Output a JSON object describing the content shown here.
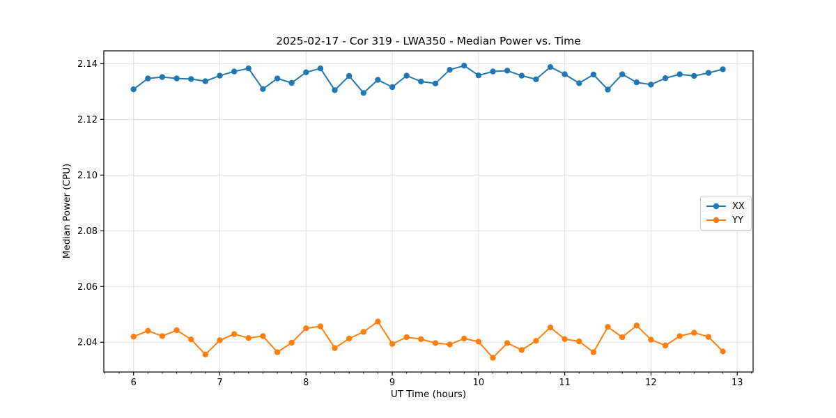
{
  "chart_data": {
    "type": "line",
    "title": "2025-02-17 - Cor 319 - LWA350 - Median Power vs. Time",
    "xlabel": "UT Time (hours)",
    "ylabel": "Median Power (CPU)",
    "xlim": [
      5.655,
      13.184
    ],
    "ylim": [
      2.0293,
      2.1446
    ],
    "grid": true,
    "legend_position": "center right",
    "x_ticks": [
      6,
      7,
      8,
      9,
      10,
      11,
      12,
      13
    ],
    "x_tick_labels": [
      "6",
      "7",
      "8",
      "9",
      "10",
      "11",
      "12",
      "13"
    ],
    "minor_x_tick_interval": 0.16667,
    "y_ticks": [
      2.04,
      2.06,
      2.08,
      2.1,
      2.12,
      2.14
    ],
    "y_tick_labels": [
      "2.04",
      "2.06",
      "2.08",
      "2.10",
      "2.12",
      "2.14"
    ],
    "colors": {
      "xx": "#1f77b4",
      "yy": "#ff7f0e",
      "grid": "#e0e0e0",
      "axis": "#000000",
      "background": "#ffffff"
    },
    "x": [
      6.0,
      6.167,
      6.333,
      6.5,
      6.667,
      6.833,
      7.0,
      7.167,
      7.333,
      7.5,
      7.667,
      7.833,
      8.0,
      8.167,
      8.333,
      8.5,
      8.667,
      8.833,
      9.0,
      9.167,
      9.333,
      9.5,
      9.667,
      9.833,
      10.0,
      10.167,
      10.333,
      10.5,
      10.667,
      10.833,
      11.0,
      11.167,
      11.333,
      11.5,
      11.667,
      11.833,
      12.0,
      12.167,
      12.333,
      12.5,
      12.667,
      12.833
    ],
    "series": [
      {
        "name": "XX",
        "color_key": "xx",
        "values": [
          2.1308,
          2.1347,
          2.1352,
          2.1347,
          2.1345,
          2.1337,
          2.1357,
          2.1372,
          2.1383,
          2.1309,
          2.1347,
          2.1331,
          2.1369,
          2.1383,
          2.1305,
          2.1356,
          2.1295,
          2.1342,
          2.1316,
          2.1357,
          2.1336,
          2.1329,
          2.1378,
          2.1393,
          2.1358,
          2.1372,
          2.1375,
          2.1357,
          2.1344,
          2.1388,
          2.1362,
          2.133,
          2.1361,
          2.1307,
          2.1362,
          2.1333,
          2.1325,
          2.1348,
          2.1362,
          2.1356,
          2.1367,
          2.138
        ]
      },
      {
        "name": "YY",
        "color_key": "yy",
        "values": [
          2.042,
          2.0441,
          2.0422,
          2.0443,
          2.041,
          2.0356,
          2.0407,
          2.0429,
          2.0415,
          2.0422,
          2.0364,
          2.0398,
          2.045,
          2.0457,
          2.0379,
          2.0413,
          2.0437,
          2.0474,
          2.0394,
          2.0418,
          2.0411,
          2.0397,
          2.0392,
          2.0413,
          2.0402,
          2.0344,
          2.0397,
          2.0372,
          2.0405,
          2.0453,
          2.0411,
          2.0403,
          2.0364,
          2.0455,
          2.0418,
          2.046,
          2.0409,
          2.0388,
          2.0422,
          2.0434,
          2.0419,
          2.0367
        ]
      }
    ]
  }
}
